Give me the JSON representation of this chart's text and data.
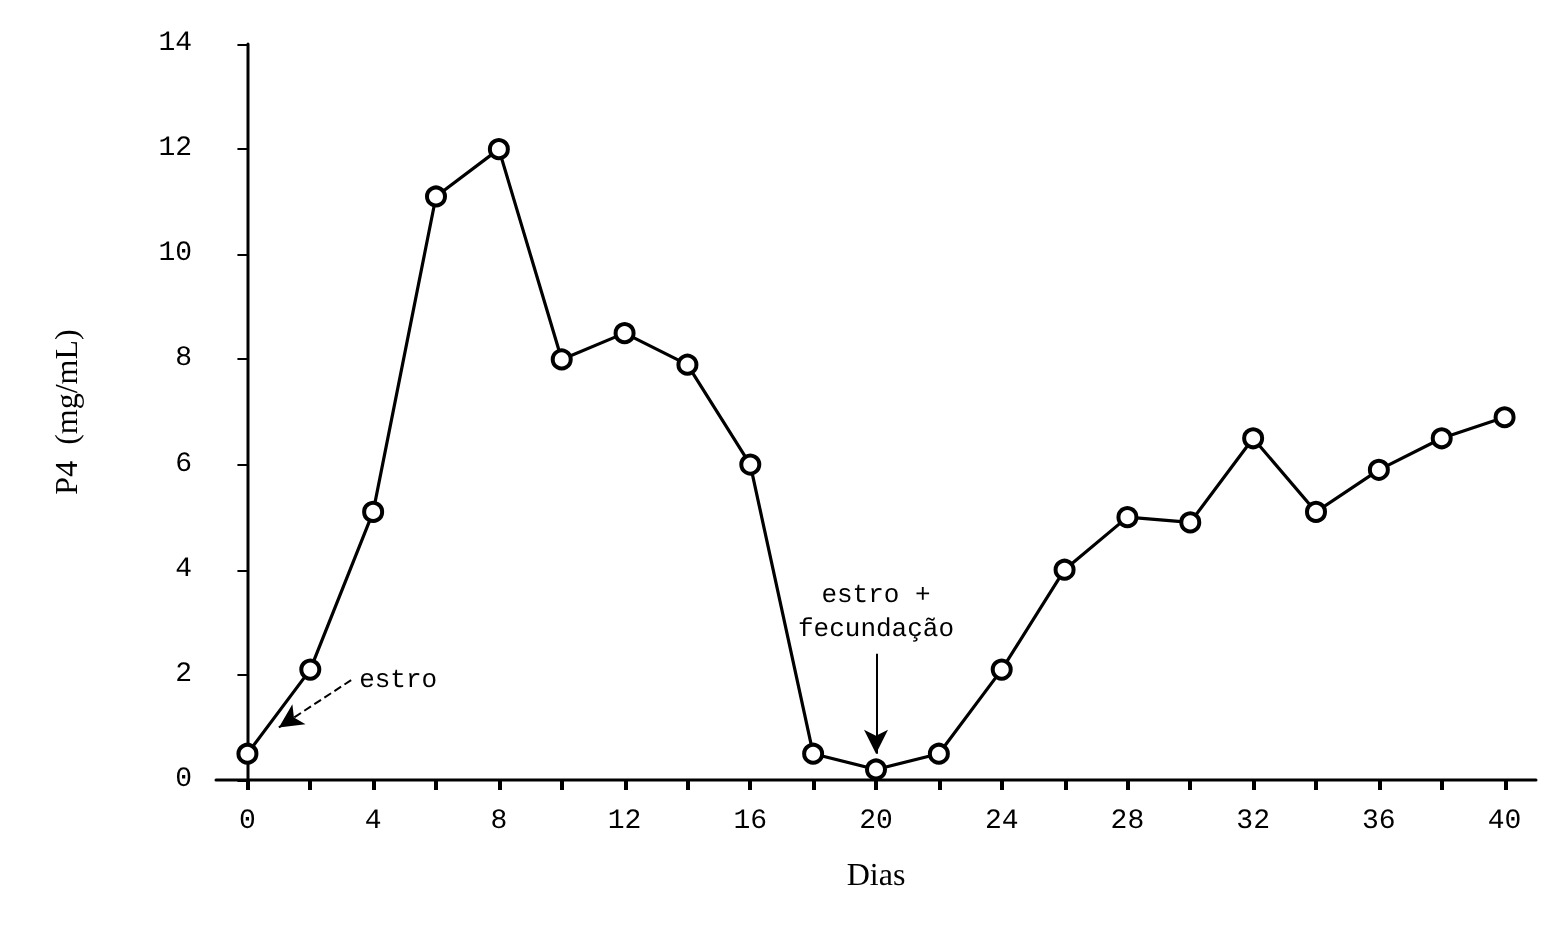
{
  "chart_data": {
    "type": "line",
    "xlabel": "Dias",
    "ylabel": "P4  (mg/mL)",
    "x": [
      0,
      2,
      4,
      6,
      8,
      10,
      12,
      14,
      16,
      18,
      20,
      22,
      24,
      26,
      28,
      30,
      32,
      34,
      36,
      38,
      40
    ],
    "series": [
      {
        "color": "#000000",
        "values": [
          0.5,
          2.1,
          5.1,
          11.1,
          12.0,
          8.0,
          8.5,
          7.9,
          6.0,
          0.5,
          0.2,
          0.5,
          2.1,
          4.0,
          5.0,
          4.9,
          6.5,
          5.1,
          5.9,
          6.5,
          6.9
        ]
      }
    ],
    "xlim": [
      -1,
      41
    ],
    "xticks": [
      0,
      {
        "value": 2,
        "label": null
      },
      4,
      {
        "value": 6,
        "label": null
      },
      8,
      {
        "value": 10,
        "label": null
      },
      12,
      {
        "value": 14,
        "label": null
      },
      16,
      {
        "value": 18,
        "label": null
      },
      20,
      {
        "value": 22,
        "label": null
      },
      24,
      {
        "value": 26,
        "label": null
      },
      28,
      {
        "value": 30,
        "label": null
      },
      32,
      {
        "value": 34,
        "label": null
      },
      36,
      {
        "value": 38,
        "label": null
      },
      40
    ],
    "ylim": [
      0,
      14
    ],
    "yticks": [
      0,
      2,
      4,
      6,
      8,
      10,
      12,
      14
    ],
    "annotations": [
      {
        "text": "estro",
        "x": 1,
        "y": 1
      },
      {
        "text": "estro +\nfecundação",
        "x": 20,
        "y": 0.5
      }
    ],
    "marker": "circle",
    "grid": false
  }
}
